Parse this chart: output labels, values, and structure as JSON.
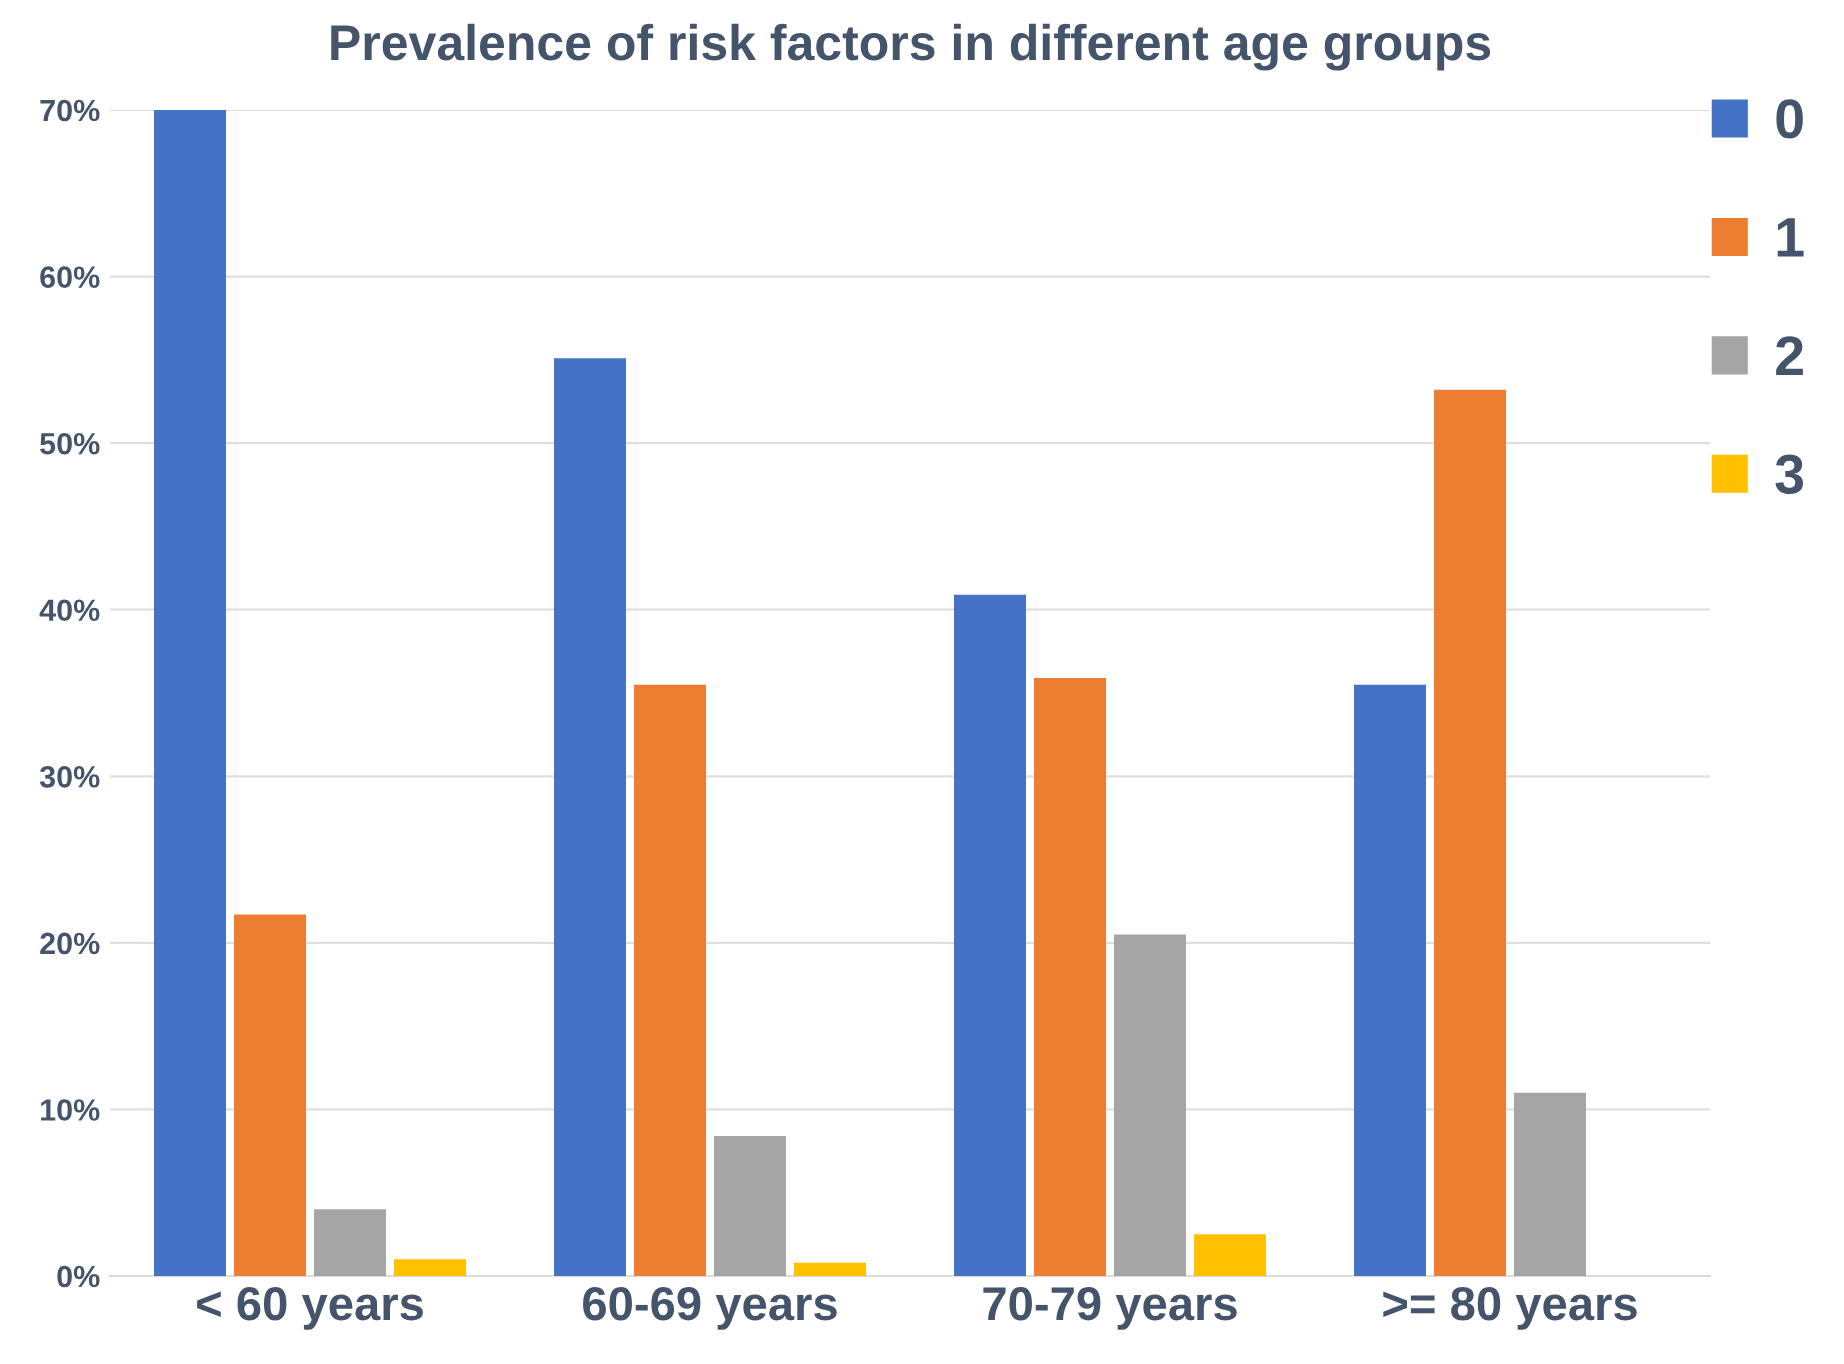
{
  "chart_data": {
    "type": "bar",
    "title": "Prevalence of risk factors in different age groups",
    "categories": [
      "< 60 years",
      "60-69 years",
      "70-79 years",
      ">= 80 years"
    ],
    "series": [
      {
        "name": "0",
        "color": "#4472c4",
        "values": [
          70,
          55.1,
          40.9,
          35.5
        ]
      },
      {
        "name": "1",
        "color": "#ed7d31",
        "values": [
          21.7,
          35.5,
          35.9,
          53.2
        ]
      },
      {
        "name": "2",
        "color": "#a5a5a5",
        "values": [
          4.0,
          8.4,
          20.5,
          11.0
        ]
      },
      {
        "name": "3",
        "color": "#ffc000",
        "values": [
          1.0,
          0.8,
          2.5,
          0
        ]
      }
    ],
    "ylim": [
      0,
      70
    ],
    "yticks": [
      {
        "value": 0,
        "label": "0%"
      },
      {
        "value": 10,
        "label": "10%"
      },
      {
        "value": 20,
        "label": "20%"
      },
      {
        "value": 30,
        "label": "30%"
      },
      {
        "value": 40,
        "label": "40%"
      },
      {
        "value": 50,
        "label": "50%"
      },
      {
        "value": 60,
        "label": "60%"
      },
      {
        "value": 70,
        "label": "70%"
      }
    ],
    "grid": "y",
    "legend": "right"
  }
}
